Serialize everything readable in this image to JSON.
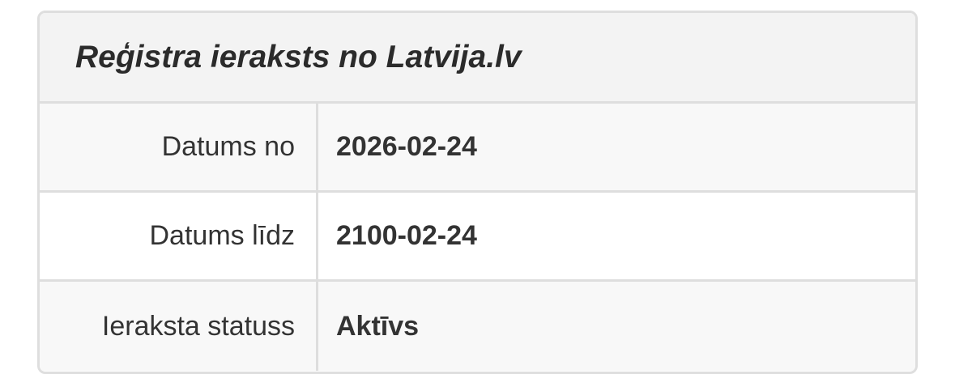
{
  "header": {
    "title": "Reģistra ieraksts no Latvija.lv"
  },
  "rows": [
    {
      "label": "Datums no",
      "value": "2026-02-24"
    },
    {
      "label": "Datums līdz",
      "value": "2100-02-24"
    },
    {
      "label": "Ieraksta statuss",
      "value": "Aktīvs"
    }
  ]
}
